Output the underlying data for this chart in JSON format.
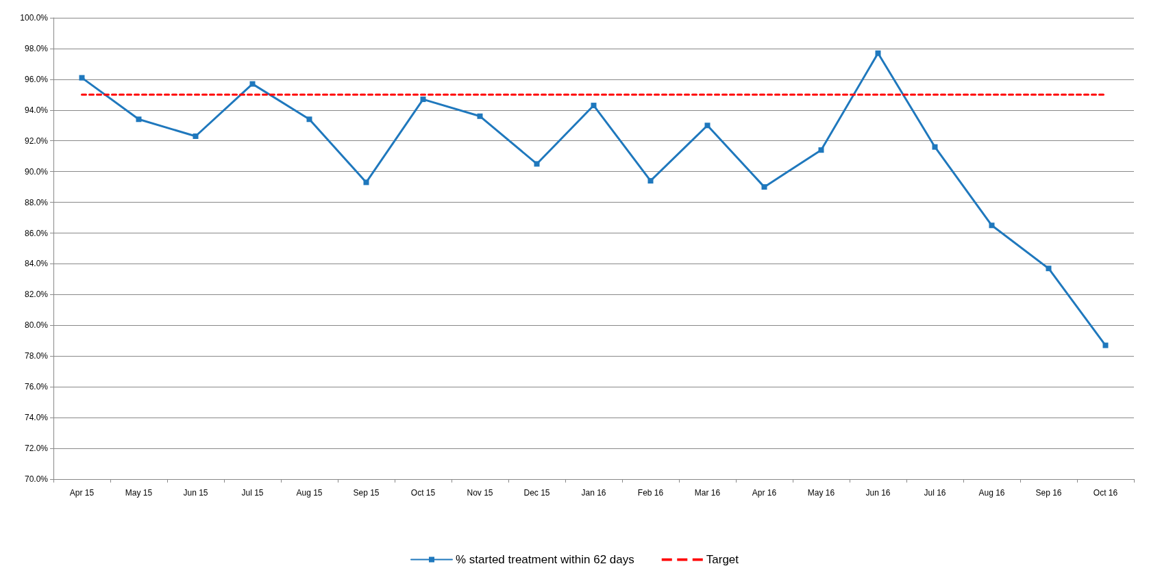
{
  "chart_data": {
    "type": "line",
    "categories": [
      "Apr 15",
      "May 15",
      "Jun 15",
      "Jul 15",
      "Aug 15",
      "Sep 15",
      "Oct 15",
      "Nov 15",
      "Dec 15",
      "Jan 16",
      "Feb 16",
      "Mar 16",
      "Apr 16",
      "May 16",
      "Jun 16",
      "Jul 16",
      "Aug 16",
      "Sep 16",
      "Oct 16"
    ],
    "series": [
      {
        "name": "% started treatment within 62 days",
        "color": "#1f78bd",
        "marker": "square",
        "line_style": "solid",
        "values": [
          96.1,
          93.4,
          92.3,
          95.7,
          93.4,
          89.3,
          94.7,
          93.6,
          90.5,
          94.3,
          89.4,
          93.0,
          89.0,
          91.4,
          97.7,
          91.6,
          86.5,
          83.7,
          78.7
        ]
      },
      {
        "name": "Target",
        "color": "#ff0000",
        "marker": "none",
        "line_style": "dashed",
        "values": [
          95,
          95,
          95,
          95,
          95,
          95,
          95,
          95,
          95,
          95,
          95,
          95,
          95,
          95,
          95,
          95,
          95,
          95,
          95
        ]
      }
    ],
    "ylim": [
      70,
      100
    ],
    "yticks": [
      {
        "value": 70,
        "label": "70.0%"
      },
      {
        "value": 72,
        "label": "72.0%"
      },
      {
        "value": 74,
        "label": "74.0%"
      },
      {
        "value": 76,
        "label": "76.0%"
      },
      {
        "value": 78,
        "label": "78.0%"
      },
      {
        "value": 80,
        "label": "80.0%"
      },
      {
        "value": 82,
        "label": "82.0%"
      },
      {
        "value": 84,
        "label": "84.0%"
      },
      {
        "value": 86,
        "label": "86.0%"
      },
      {
        "value": 88,
        "label": "88.0%"
      },
      {
        "value": 90,
        "label": "90.0%"
      },
      {
        "value": 92,
        "label": "92.0%"
      },
      {
        "value": 94,
        "label": "94.0%"
      },
      {
        "value": 96,
        "label": "96.0%"
      },
      {
        "value": 98,
        "label": "98.0%"
      },
      {
        "value": 100,
        "label": "100.0%"
      }
    ],
    "grid": "y",
    "legend": "bottom"
  }
}
